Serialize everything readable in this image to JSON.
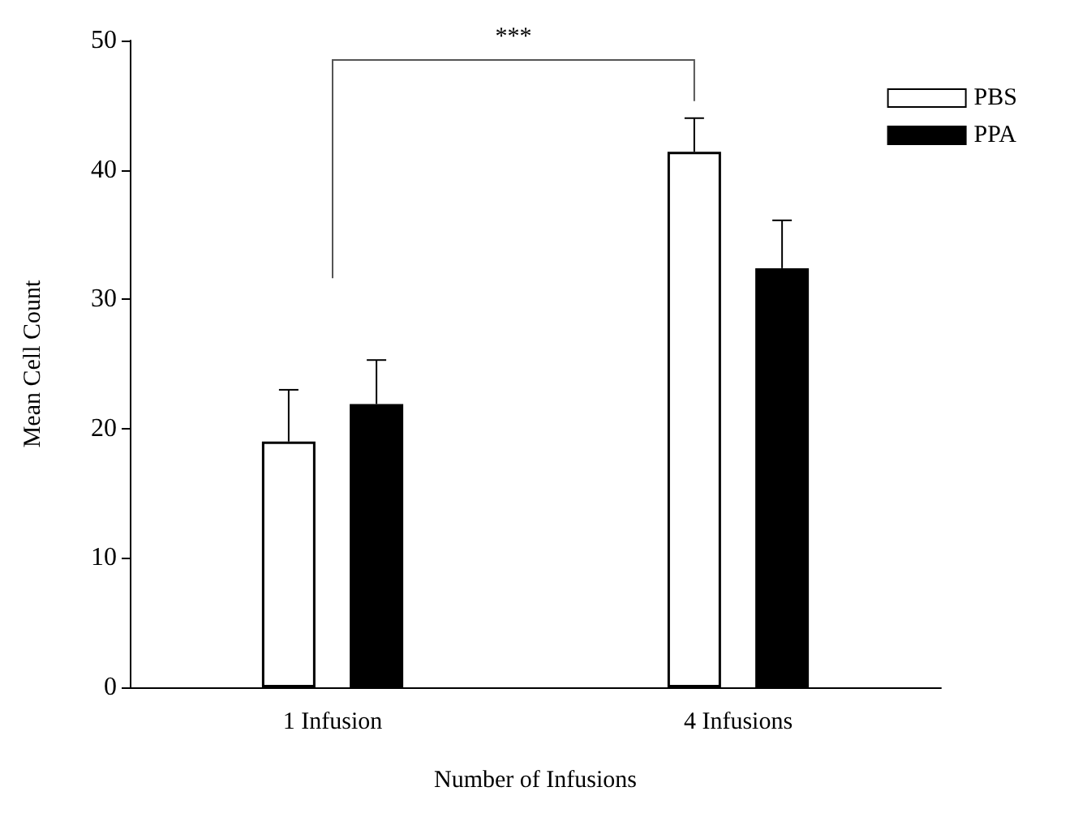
{
  "chart_data": {
    "type": "bar",
    "xlabel": "Number of Infusions",
    "ylabel": "Mean Cell Count",
    "categories": [
      "1 Infusion",
      "4 Infusions"
    ],
    "series": [
      {
        "name": "PBS",
        "color": "#ffffff",
        "values": [
          19,
          41.4
        ],
        "errors": [
          4,
          2.6
        ]
      },
      {
        "name": "PPA",
        "color": "#000000",
        "values": [
          21.9,
          32.4
        ],
        "errors": [
          3.4,
          3.7
        ]
      }
    ],
    "ylim": [
      0,
      50
    ],
    "yticks": [
      0,
      10,
      20,
      30,
      40,
      50
    ],
    "grid": false,
    "legend": "top right",
    "annotations": [
      "***"
    ]
  }
}
